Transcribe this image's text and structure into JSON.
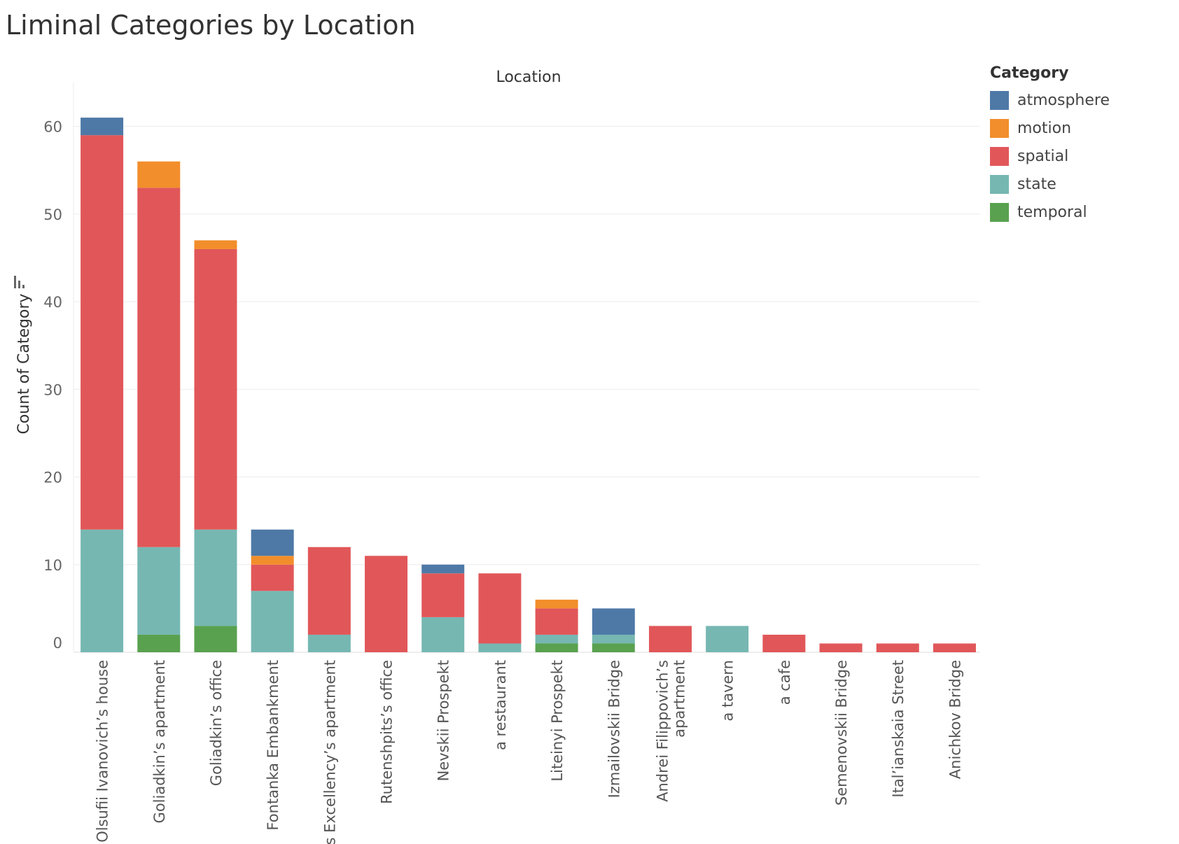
{
  "title": "Liminal Categories by Location",
  "legend": {
    "title": "Category",
    "items": [
      {
        "label": "atmosphere",
        "color": "#4e79a7"
      },
      {
        "label": "motion",
        "color": "#f28e2b"
      },
      {
        "label": "spatial",
        "color": "#e15759"
      },
      {
        "label": "state",
        "color": "#76b7b2"
      },
      {
        "label": "temporal",
        "color": "#59a14f"
      }
    ]
  },
  "chart_data": {
    "type": "bar",
    "stacked": true,
    "xlabel": "Location",
    "ylabel": "Count of Category",
    "ylim": [
      0,
      65
    ],
    "yticks": [
      0,
      10,
      20,
      30,
      40,
      50,
      60
    ],
    "grid": true,
    "legend_position": "right",
    "categories": [
      "Olsufii Ivanovich’s house",
      "Goliadkin’s apartment",
      "Goliadkin’s office",
      "Fontanka Embankment",
      "His Excellency’s apartment",
      "Rutenshpits’s office",
      "Nevskii Prospekt",
      "a restaurant",
      "Liteinyi Prospekt",
      "Izmailovskii Bridge",
      "Andrei Filippovich’s apartment",
      "a tavern",
      "a cafe",
      "Semenovskii Bridge",
      "Ital’ianskaia Street",
      "Anichkov Bridge"
    ],
    "series": [
      {
        "name": "temporal",
        "color": "#59a14f",
        "values": [
          0,
          2,
          3,
          0,
          0,
          0,
          0,
          0,
          1,
          1,
          0,
          0,
          0,
          0,
          0,
          0
        ]
      },
      {
        "name": "state",
        "color": "#76b7b2",
        "values": [
          14,
          10,
          11,
          7,
          2,
          0,
          4,
          1,
          1,
          1,
          0,
          3,
          0,
          0,
          0,
          0
        ]
      },
      {
        "name": "spatial",
        "color": "#e15759",
        "values": [
          45,
          41,
          32,
          3,
          10,
          11,
          5,
          8,
          3,
          0,
          3,
          0,
          2,
          1,
          1,
          1
        ]
      },
      {
        "name": "motion",
        "color": "#f28e2b",
        "values": [
          0,
          3,
          1,
          1,
          0,
          0,
          0,
          0,
          1,
          0,
          0,
          0,
          0,
          0,
          0,
          0
        ]
      },
      {
        "name": "atmosphere",
        "color": "#4e79a7",
        "values": [
          2,
          0,
          0,
          3,
          0,
          0,
          1,
          0,
          0,
          3,
          0,
          0,
          0,
          0,
          0,
          0
        ]
      }
    ]
  }
}
